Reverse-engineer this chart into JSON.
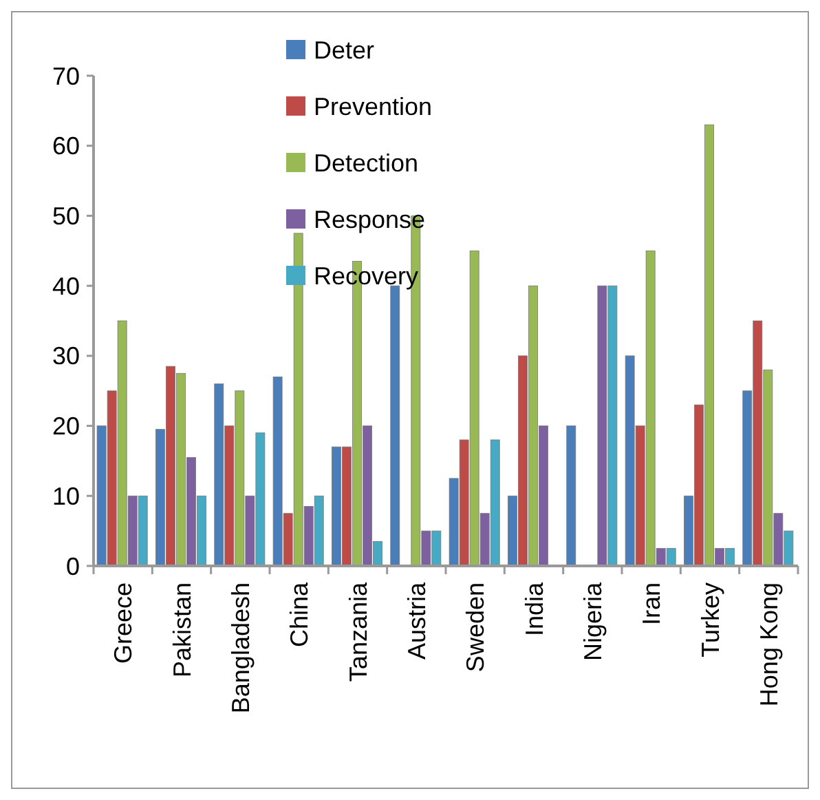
{
  "chart_data": {
    "type": "bar",
    "categories": [
      "Greece",
      "Pakistan",
      "Bangladesh",
      "China",
      "Tanzania",
      "Austria",
      "Sweden",
      "India",
      "Nigeria",
      "Iran",
      "Turkey",
      "Hong Kong"
    ],
    "series": [
      {
        "name": "Deter",
        "color": "#4a7ebb",
        "values": [
          20,
          19.5,
          26,
          27,
          17,
          40,
          12.5,
          10,
          20,
          30,
          10,
          25
        ]
      },
      {
        "name": "Prevention",
        "color": "#be4b48",
        "values": [
          25,
          28.5,
          20,
          7.5,
          17,
          0,
          18,
          30,
          0,
          20,
          23,
          35
        ]
      },
      {
        "name": "Detection",
        "color": "#98b954",
        "values": [
          35,
          27.5,
          25,
          47.5,
          43.5,
          50,
          45,
          40,
          0,
          45,
          63,
          28
        ]
      },
      {
        "name": "Response",
        "color": "#7d60a0",
        "values": [
          10,
          15.5,
          10,
          8.5,
          20,
          5,
          7.5,
          20,
          40,
          2.5,
          2.5,
          7.5
        ]
      },
      {
        "name": "Recovery",
        "color": "#46aac5",
        "values": [
          10,
          10,
          19,
          10,
          3.5,
          5,
          18,
          0,
          40,
          2.5,
          2.5,
          5
        ]
      }
    ],
    "ylim": [
      0,
      70
    ],
    "yticks": [
      0,
      10,
      20,
      30,
      40,
      50,
      60,
      70
    ],
    "grid": false,
    "legend": "top"
  }
}
